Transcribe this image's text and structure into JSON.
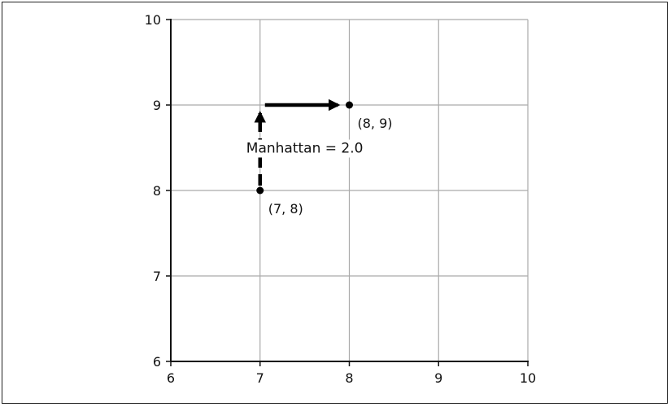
{
  "chart_data": {
    "type": "scatter",
    "title": "",
    "xlabel": "",
    "ylabel": "",
    "xlim": [
      6,
      10
    ],
    "ylim": [
      6,
      10
    ],
    "xticks": [
      6,
      7,
      8,
      9,
      10
    ],
    "yticks": [
      6,
      7,
      8,
      9,
      10
    ],
    "grid": true,
    "points": [
      {
        "x": 7,
        "y": 8,
        "label": "(7, 8)"
      },
      {
        "x": 8,
        "y": 9,
        "label": "(8, 9)"
      }
    ],
    "paths": [
      {
        "from": [
          7,
          8
        ],
        "to": [
          7,
          9
        ],
        "style": "dashed",
        "arrow": true
      },
      {
        "from": [
          7,
          9
        ],
        "to": [
          8,
          9
        ],
        "style": "solid",
        "arrow": true
      }
    ],
    "annotation": {
      "text": "Manhattan = 2.0",
      "x": 7.5,
      "y": 8.5
    },
    "colors": {
      "grid": "#aaaaaa",
      "axis": "#111111",
      "marker": "#000000"
    }
  }
}
